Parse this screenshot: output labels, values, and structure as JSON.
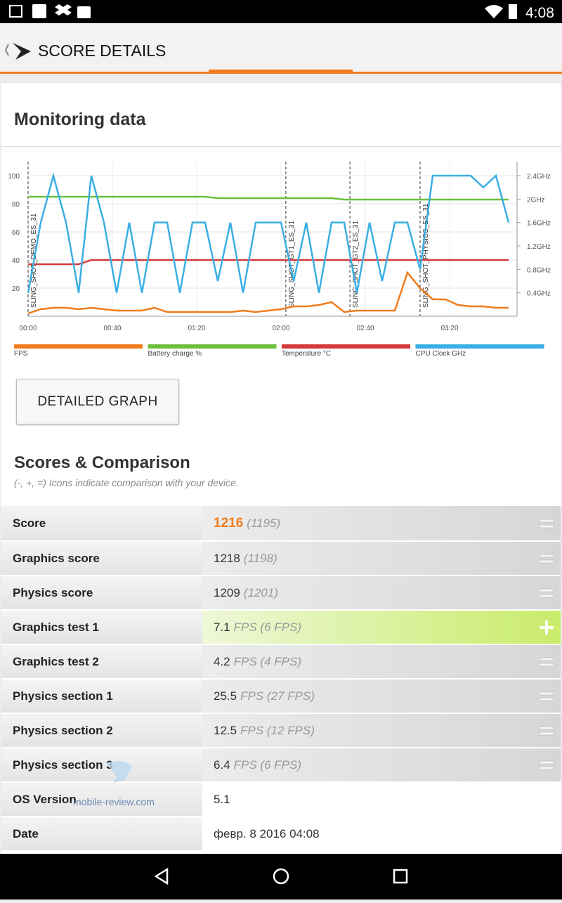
{
  "status_bar": {
    "time": "4:08"
  },
  "app_bar": {
    "title": "SCORE DETAILS"
  },
  "monitoring": {
    "title": "Monitoring data",
    "button": "DETAILED GRAPH",
    "chart_data": {
      "type": "line",
      "x": [
        0,
        6,
        12,
        18,
        24,
        30,
        36,
        42,
        48,
        54,
        60,
        66,
        72,
        78,
        84,
        90,
        96,
        102,
        108,
        114,
        120,
        126,
        132,
        138,
        144,
        150,
        156,
        162,
        168,
        174,
        180,
        186,
        192,
        198,
        204,
        210,
        216,
        222,
        228
      ],
      "series": [
        {
          "name": "FPS",
          "color": "#f07c1c",
          "values": [
            2,
            5,
            6,
            6,
            5,
            6,
            5,
            4,
            4,
            4,
            6,
            3,
            3,
            3,
            3,
            3,
            3,
            4,
            3,
            4,
            5,
            7,
            7,
            8,
            10,
            3,
            4,
            4,
            4,
            4,
            31,
            20,
            12,
            12,
            8,
            7,
            7,
            6,
            6
          ]
        },
        {
          "name": "Battery charge %",
          "color": "#6cbf3a",
          "values": [
            85,
            85,
            85,
            85,
            85,
            85,
            85,
            85,
            85,
            85,
            85,
            85,
            85,
            85,
            85,
            84,
            84,
            84,
            84,
            84,
            84,
            84,
            84,
            84,
            84,
            83,
            83,
            83,
            83,
            83,
            83,
            83,
            83,
            83,
            83,
            83,
            83,
            83,
            83
          ]
        },
        {
          "name": "Temperature °C",
          "color": "#d43a3a",
          "values": [
            37,
            37,
            37,
            37,
            37,
            40,
            40,
            40,
            40,
            40,
            40,
            40,
            40,
            40,
            40,
            40,
            40,
            40,
            40,
            40,
            40,
            40,
            40,
            40,
            40,
            40,
            40,
            40,
            40,
            40,
            40,
            40,
            40,
            40,
            40,
            40,
            40,
            40,
            40
          ]
        },
        {
          "name": "CPU Clock GHz",
          "color": "#3aaee4",
          "axis": "y2",
          "values": [
            0.4,
            1.6,
            2.4,
            1.6,
            0.4,
            2.4,
            1.6,
            0.4,
            1.6,
            0.4,
            1.6,
            1.6,
            0.4,
            1.6,
            1.6,
            0.6,
            1.6,
            0.4,
            1.6,
            1.6,
            1.6,
            0.6,
            1.6,
            0.4,
            1.6,
            1.6,
            0.4,
            1.6,
            0.6,
            1.6,
            1.6,
            0.8,
            2.4,
            2.4,
            2.4,
            2.4,
            2.2,
            2.4,
            1.6
          ]
        }
      ],
      "xlim": [
        0,
        232
      ],
      "xticks": [
        {
          "value": 0,
          "label": "00:00"
        },
        {
          "value": 40,
          "label": "00:40"
        },
        {
          "value": 80,
          "label": "01:20"
        },
        {
          "value": 120,
          "label": "02:00"
        },
        {
          "value": 160,
          "label": "02:40"
        },
        {
          "value": 200,
          "label": "03:20"
        }
      ],
      "ylim": [
        0,
        110
      ],
      "yticks": [
        20,
        40,
        60,
        80,
        100
      ],
      "y2lim": [
        0,
        2.64
      ],
      "y2ticks": [
        {
          "value": 0.4,
          "label": "0.4GHz"
        },
        {
          "value": 0.8,
          "label": "0.8GHz"
        },
        {
          "value": 1.2,
          "label": "1.2GHz"
        },
        {
          "value": 1.6,
          "label": "1.6GHz"
        },
        {
          "value": 2,
          "label": "2GHz"
        },
        {
          "value": 2.4,
          "label": "2.4GHz"
        }
      ],
      "grid": true,
      "markers": [
        {
          "x": 0,
          "label": "SLING_SHOT_DEMO_ES_31"
        },
        {
          "x": 122.3,
          "label": "SLING_SHOT_GT1_ES_31"
        },
        {
          "x": 152.7,
          "label": "SLING_SHOT_GT2_ES_31"
        },
        {
          "x": 186,
          "label": "SLING_SHOT_PHYSICS_ES_31"
        }
      ]
    }
  },
  "scores": {
    "title": "Scores & Comparison",
    "subtitle": "(-, +, =) Icons indicate comparison with your device.",
    "rows": [
      {
        "label": "Score",
        "value": "1216",
        "detail": "(1195)",
        "comparison": "equal"
      },
      {
        "label": "Graphics score",
        "value": "1218",
        "detail": "(1198)",
        "comparison": "equal"
      },
      {
        "label": "Physics score",
        "value": "1209",
        "detail": "(1201)",
        "comparison": "equal"
      },
      {
        "label": "Graphics test 1",
        "value": "7.1",
        "detail": "FPS (6 FPS)",
        "comparison": "better"
      },
      {
        "label": "Graphics test 2",
        "value": "4.2",
        "detail": "FPS (4 FPS)",
        "comparison": "equal"
      },
      {
        "label": "Physics section 1",
        "value": "25.5",
        "detail": "FPS (27 FPS)",
        "comparison": "equal"
      },
      {
        "label": "Physics section 2",
        "value": "12.5",
        "detail": "FPS (12 FPS)",
        "comparison": "equal"
      },
      {
        "label": "Physics section 3",
        "value": "6.4",
        "detail": "FPS (6 FPS)",
        "comparison": "equal"
      },
      {
        "label": "OS Version",
        "value": "5.1"
      },
      {
        "label": "Date",
        "value": "февр. 8 2016 04:08"
      }
    ]
  },
  "watermark": "mobile-review.com"
}
